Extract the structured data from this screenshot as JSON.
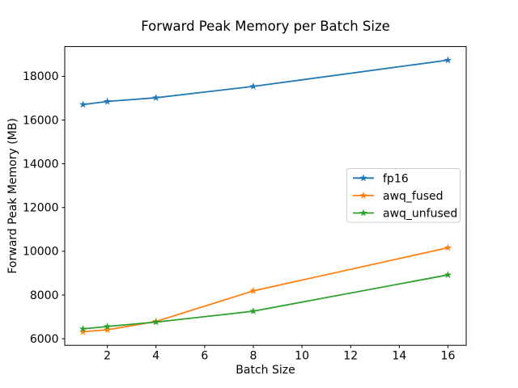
{
  "figure": {
    "background": "#ffffff",
    "text_color": "#000000"
  },
  "chart_data": {
    "type": "line",
    "title": "Forward Peak Memory per Batch Size",
    "xlabel": "Batch Size",
    "ylabel": "Forward Peak Memory (MB)",
    "x": [
      1,
      2,
      4,
      8,
      16
    ],
    "series": [
      {
        "name": "fp16",
        "color": "#1f77b4",
        "marker": "star",
        "values": [
          16710,
          16850,
          17020,
          17540,
          18740
        ]
      },
      {
        "name": "awq_fused",
        "color": "#ff7f0e",
        "marker": "star",
        "values": [
          6320,
          6410,
          6790,
          8190,
          10160
        ]
      },
      {
        "name": "awq_unfused",
        "color": "#2ca02c",
        "marker": "star",
        "values": [
          6450,
          6560,
          6760,
          7260,
          8920
        ]
      }
    ],
    "xticks": [
      2,
      4,
      6,
      8,
      10,
      12,
      14,
      16
    ],
    "yticks": [
      6000,
      8000,
      10000,
      12000,
      14000,
      16000,
      18000
    ],
    "xlim": [
      0.25,
      16.75
    ],
    "ylim": [
      5699,
      19361
    ],
    "grid": false,
    "legend_position": "center-right"
  }
}
